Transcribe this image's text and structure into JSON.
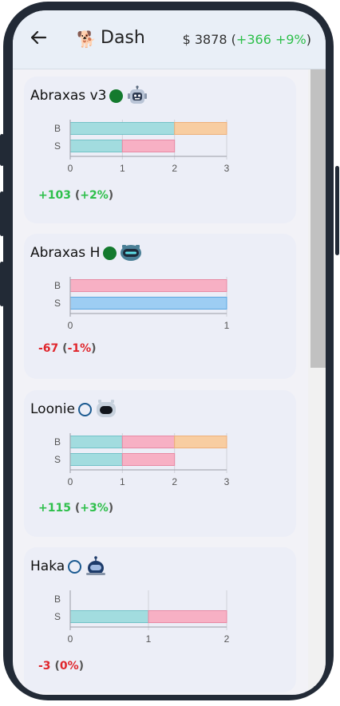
{
  "header": {
    "title": "Dash",
    "balance_prefix": "$ 3878 (",
    "balance_change": "+366 +9%",
    "balance_suffix": ")",
    "back_icon": "arrow-left-icon",
    "logo_icon": "dog-icon"
  },
  "colors": {
    "accent_green": "#2dbf4a",
    "loss_red": "#e0262c",
    "active_dot": "#147a2e",
    "inactive_dot": "#1b5a91"
  },
  "bots": [
    {
      "name": "Abraxas v3",
      "active": true,
      "avatar": "robot-head-icon",
      "pnl_value": "+103",
      "pnl_pct": "+2%",
      "pnl_positive": true,
      "chart_data": {
        "type": "bar",
        "orientation": "horizontal-stacked",
        "categories": [
          "B",
          "S"
        ],
        "xlim": [
          0,
          3
        ],
        "ticks": [
          "0",
          "1",
          "2",
          "3"
        ],
        "rows": [
          [
            {
              "value": 2,
              "color": "#a2dcdf"
            },
            {
              "value": 1,
              "color": "#f8cda1"
            }
          ],
          [
            {
              "value": 1,
              "color": "#a2dcdf"
            },
            {
              "value": 1,
              "color": "#f7b0c4"
            }
          ]
        ]
      }
    },
    {
      "name": "Abraxas H",
      "active": true,
      "avatar": "robot-visor-icon",
      "pnl_value": "-67",
      "pnl_pct": "-1%",
      "pnl_positive": false,
      "chart_data": {
        "type": "bar",
        "orientation": "horizontal-stacked",
        "categories": [
          "B",
          "S"
        ],
        "xlim": [
          0,
          1
        ],
        "ticks": [
          "0",
          "1"
        ],
        "rows": [
          [
            {
              "value": 1,
              "color": "#f7b0c4"
            }
          ],
          [
            {
              "value": 1,
              "color": "#9dcdf3"
            }
          ]
        ]
      }
    },
    {
      "name": "Loonie",
      "active": false,
      "avatar": "robot-dark-face-icon",
      "pnl_value": "+115",
      "pnl_pct": "+3%",
      "pnl_positive": true,
      "chart_data": {
        "type": "bar",
        "orientation": "horizontal-stacked",
        "categories": [
          "B",
          "S"
        ],
        "xlim": [
          0,
          3
        ],
        "ticks": [
          "0",
          "1",
          "2",
          "3"
        ],
        "rows": [
          [
            {
              "value": 1,
              "color": "#a2dcdf"
            },
            {
              "value": 1,
              "color": "#f7b0c4"
            },
            {
              "value": 1,
              "color": "#f8cda1"
            }
          ],
          [
            {
              "value": 1,
              "color": "#a2dcdf"
            },
            {
              "value": 1,
              "color": "#f7b0c4"
            }
          ]
        ]
      }
    },
    {
      "name": "Haka",
      "active": false,
      "avatar": "robot-antenna-icon",
      "pnl_value": "-3",
      "pnl_pct": "0%",
      "pnl_positive": false,
      "chart_data": {
        "type": "bar",
        "orientation": "horizontal-stacked",
        "categories": [
          "B",
          "S"
        ],
        "xlim": [
          0,
          2
        ],
        "ticks": [
          "0",
          "1",
          "2"
        ],
        "rows": [
          [],
          [
            {
              "value": 1,
              "color": "#a2dcdf"
            },
            {
              "value": 1,
              "color": "#f7b0c4"
            }
          ]
        ]
      }
    }
  ]
}
